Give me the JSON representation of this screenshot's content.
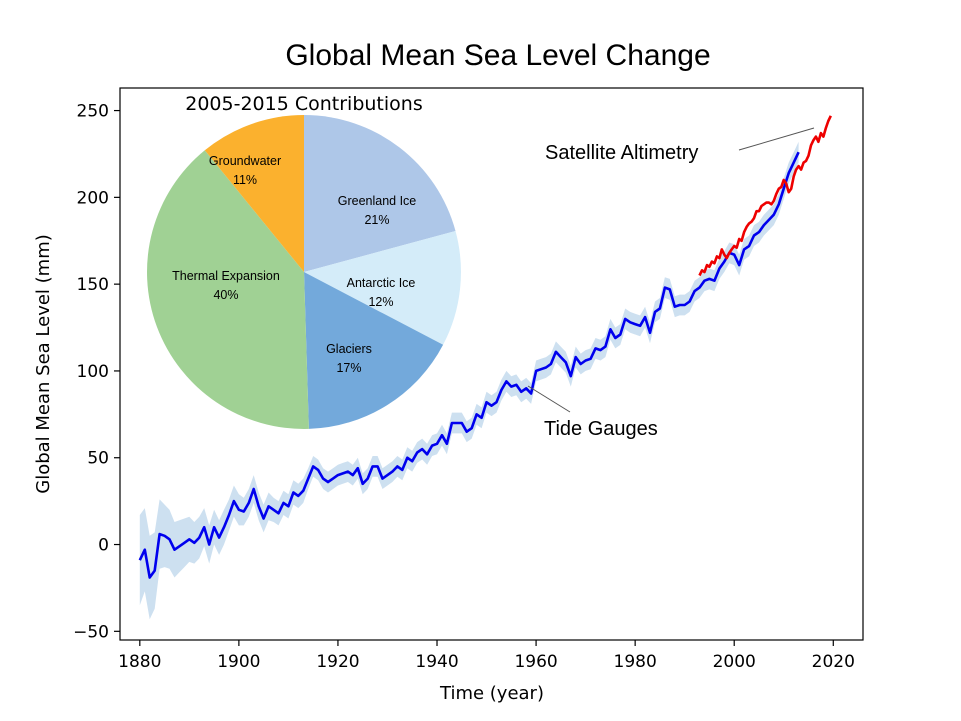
{
  "chart_data": {
    "type": "line",
    "title": "Global Mean Sea Level Change",
    "xlabel": "Time (year)",
    "ylabel": "Global Mean Sea Level (mm)",
    "xlim": [
      1876,
      2026
    ],
    "ylim": [
      -55,
      263
    ],
    "x_ticks": [
      "1880",
      "1900",
      "1920",
      "1940",
      "1960",
      "1980",
      "2000",
      "2020"
    ],
    "x_tick_values": [
      1880,
      1900,
      1920,
      1940,
      1960,
      1980,
      2000,
      2020
    ],
    "y_ticks": [
      "−50",
      "0",
      "50",
      "100",
      "150",
      "200",
      "250"
    ],
    "y_tick_values": [
      -50,
      0,
      50,
      100,
      150,
      200,
      250
    ],
    "grid": false,
    "series": [
      {
        "name": "Tide Gauges",
        "color": "#0000ee",
        "band_color": "#cde0f0",
        "x": [
          1880,
          1881,
          1882,
          1883,
          1884,
          1885,
          1886,
          1887,
          1888,
          1889,
          1890,
          1891,
          1892,
          1893,
          1894,
          1895,
          1896,
          1897,
          1898,
          1899,
          1900,
          1901,
          1902,
          1903,
          1904,
          1905,
          1906,
          1907,
          1908,
          1909,
          1910,
          1911,
          1912,
          1913,
          1914,
          1915,
          1916,
          1917,
          1918,
          1919,
          1920,
          1921,
          1922,
          1923,
          1924,
          1925,
          1926,
          1927,
          1928,
          1929,
          1930,
          1931,
          1932,
          1933,
          1934,
          1935,
          1936,
          1937,
          1938,
          1939,
          1940,
          1941,
          1942,
          1943,
          1944,
          1945,
          1946,
          1947,
          1948,
          1949,
          1950,
          1951,
          1952,
          1953,
          1954,
          1955,
          1956,
          1957,
          1958,
          1959,
          1960,
          1961,
          1962,
          1963,
          1964,
          1965,
          1966,
          1967,
          1968,
          1969,
          1970,
          1971,
          1972,
          1973,
          1974,
          1975,
          1976,
          1977,
          1978,
          1979,
          1980,
          1981,
          1982,
          1983,
          1984,
          1985,
          1986,
          1987,
          1988,
          1989,
          1990,
          1991,
          1992,
          1993,
          1994,
          1995,
          1996,
          1997,
          1998,
          1999,
          2000,
          2001,
          2002,
          2003,
          2004,
          2005,
          2006,
          2007,
          2008,
          2009,
          2010,
          2011,
          2012,
          2013
        ],
        "y": [
          -9,
          -3,
          -19,
          -15,
          6,
          5,
          3,
          -3,
          -1,
          1,
          3,
          1,
          4,
          10,
          0,
          10,
          4,
          10,
          17,
          25,
          20,
          19,
          24,
          32,
          22,
          15,
          22,
          20,
          18,
          24,
          22,
          30,
          28,
          31,
          38,
          45,
          43,
          38,
          36,
          38,
          40,
          41,
          42,
          40,
          44,
          35,
          38,
          45,
          45,
          38,
          40,
          42,
          45,
          43,
          50,
          48,
          53,
          55,
          52,
          57,
          58,
          63,
          58,
          70,
          70,
          70,
          65,
          67,
          75,
          73,
          82,
          80,
          82,
          89,
          94,
          91,
          92,
          88,
          90,
          87,
          100,
          101,
          102,
          104,
          111,
          108,
          105,
          97,
          108,
          104,
          106,
          107,
          113,
          112,
          114,
          124,
          119,
          121,
          130,
          128,
          127,
          126,
          131,
          122,
          134,
          136,
          148,
          147,
          137,
          138,
          138,
          140,
          146,
          148,
          152,
          153,
          152,
          159,
          163,
          168,
          167,
          161,
          170,
          172,
          178,
          180,
          184,
          187,
          190,
          196,
          205,
          214,
          220,
          226
        ],
        "band_halfwidth": [
          26,
          24,
          24,
          22,
          20,
          18,
          17,
          16,
          15,
          14,
          13,
          12,
          12,
          11,
          11,
          10,
          10,
          10,
          9,
          9,
          9,
          8,
          8,
          8,
          8,
          8,
          8,
          7,
          7,
          7,
          7,
          7,
          7,
          7,
          6,
          6,
          6,
          6,
          6,
          6,
          6,
          6,
          6,
          6,
          6,
          6,
          6,
          6,
          6,
          6,
          6,
          6,
          6,
          6,
          6,
          6,
          6,
          6,
          6,
          6,
          6,
          6,
          6,
          6,
          6,
          6,
          6,
          6,
          6,
          6,
          6,
          6,
          6,
          6,
          6,
          6,
          6,
          6,
          6,
          6,
          6,
          6,
          6,
          6,
          6,
          6,
          6,
          6,
          6,
          6,
          6,
          6,
          6,
          6,
          6,
          6,
          6,
          6,
          6,
          6,
          6,
          6,
          6,
          6,
          6,
          6,
          6,
          6,
          6,
          6,
          6,
          6,
          6,
          6,
          6,
          6,
          6,
          6,
          6,
          6,
          6,
          6,
          6,
          6,
          6,
          6,
          6,
          6,
          6,
          6,
          6,
          6,
          6,
          6
        ]
      },
      {
        "name": "Satellite Altimetry",
        "color": "#ee0000",
        "x": [
          1993,
          1993.5,
          1994,
          1994.5,
          1995,
          1995.5,
          1996,
          1996.5,
          1997,
          1997.5,
          1998,
          1998.5,
          1999,
          1999.5,
          2000,
          2000.5,
          2001,
          2001.5,
          2002,
          2002.5,
          2003,
          2003.5,
          2004,
          2004.5,
          2005,
          2005.5,
          2006,
          2006.5,
          2007,
          2007.5,
          2008,
          2008.5,
          2009,
          2009.5,
          2010,
          2010.5,
          2011,
          2011.5,
          2012,
          2012.5,
          2013,
          2013.5,
          2014,
          2014.5,
          2015,
          2015.5,
          2016,
          2016.5,
          2017,
          2017.5,
          2018,
          2018.5,
          2019,
          2019.5
        ],
        "y": [
          155,
          158,
          157,
          161,
          160,
          163,
          162,
          166,
          165,
          170,
          167,
          165,
          168,
          170,
          172,
          171,
          176,
          175,
          180,
          183,
          185,
          186,
          188,
          192,
          192,
          195,
          196,
          197,
          197,
          196,
          198,
          202,
          205,
          206,
          210,
          208,
          203,
          205,
          212,
          216,
          218,
          216,
          220,
          221,
          224,
          230,
          233,
          235,
          232,
          237,
          235,
          240,
          244,
          247
        ]
      }
    ],
    "annotations": [
      {
        "text": "Satellite Altimetry",
        "points_to": [
          2015,
          238
        ]
      },
      {
        "text": "Tide Gauges",
        "points_to": [
          1957,
          88
        ]
      }
    ],
    "inset_pie": {
      "title": "2005-2015 Contributions",
      "slices": [
        {
          "label": "Greenland Ice",
          "pct_label": "21%",
          "value": 21,
          "color": "#aec7e8"
        },
        {
          "label": "Antarctic Ice",
          "pct_label": "12%",
          "value": 12,
          "color": "#d4ecf9"
        },
        {
          "label": "Glaciers",
          "pct_label": "17%",
          "value": 17,
          "color": "#73a9db"
        },
        {
          "label": "Thermal Expansion",
          "pct_label": "40%",
          "value": 40,
          "color": "#a0d194"
        },
        {
          "label": "Groundwater",
          "pct_label": "11%",
          "value": 11,
          "color": "#fbb12e"
        }
      ]
    }
  }
}
